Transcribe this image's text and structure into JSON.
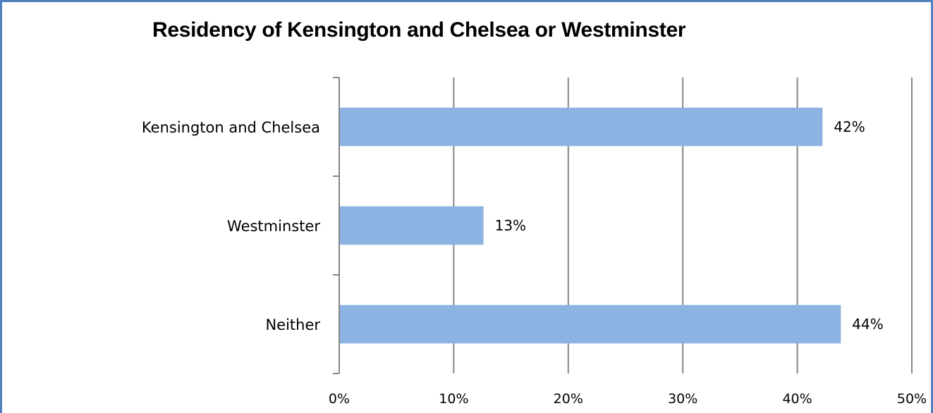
{
  "chart_data": {
    "type": "bar",
    "orientation": "horizontal",
    "title": "Residency of Kensington and Chelsea or Westminster",
    "xlabel": "",
    "ylabel": "",
    "categories": [
      "Kensington and Chelsea",
      "Westminster",
      "Neither"
    ],
    "values": [
      42.2,
      12.6,
      43.8
    ],
    "data_labels": [
      "42%",
      "13%",
      "44%"
    ],
    "xlim": [
      0,
      50
    ],
    "xticks": [
      0,
      10,
      20,
      30,
      40,
      50
    ],
    "xtick_labels": [
      "0%",
      "10%",
      "20%",
      "30%",
      "40%",
      "50%"
    ],
    "grid": "vertical",
    "legend": "none",
    "bar_color": "#8db3e2",
    "gridline_color": "#868686",
    "frame_color": "#4f81bd"
  }
}
